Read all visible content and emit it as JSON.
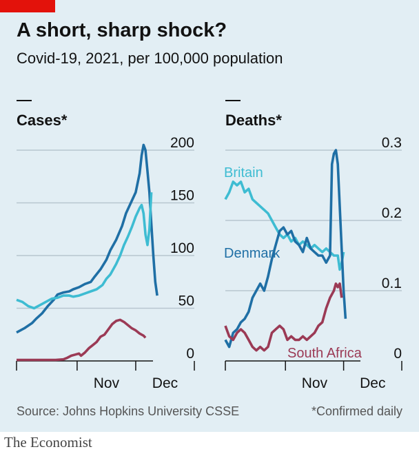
{
  "header": {
    "title": "A short, sharp shock?",
    "subtitle": "Covid-19, 2021, per 100,000 population"
  },
  "source": "Source: Johns Hopkins University CSSE",
  "footnote": "*Confirmed daily",
  "brand": "The Economist",
  "colors": {
    "background": "#e2eef4",
    "brand_red": "#e3120b",
    "denmark": "#1f6fa5",
    "britain": "#3ebcd2",
    "south_africa": "#9b3a55",
    "grid": "#b7c6cf"
  },
  "chart_data": [
    {
      "type": "line",
      "title": "Cases*",
      "ylim": [
        0,
        200
      ],
      "yticks": [
        "0",
        "50",
        "100",
        "150",
        "200"
      ],
      "xticks": [
        {
          "label": "Nov",
          "day": 31
        },
        {
          "label": "Dec",
          "day": 61
        }
      ],
      "xlim": [
        0,
        91
      ],
      "series": [
        {
          "name": "Denmark",
          "points": [
            [
              0,
              27
            ],
            [
              4,
              31
            ],
            [
              8,
              36
            ],
            [
              10,
              40
            ],
            [
              13,
              45
            ],
            [
              16,
              52
            ],
            [
              19,
              58
            ],
            [
              21,
              63
            ],
            [
              24,
              65
            ],
            [
              27,
              66
            ],
            [
              29,
              68
            ],
            [
              32,
              70
            ],
            [
              35,
              73
            ],
            [
              38,
              75
            ],
            [
              40,
              80
            ],
            [
              43,
              87
            ],
            [
              46,
              96
            ],
            [
              48,
              105
            ],
            [
              51,
              115
            ],
            [
              54,
              128
            ],
            [
              56,
              140
            ],
            [
              59,
              152
            ],
            [
              61,
              160
            ],
            [
              63,
              178
            ],
            [
              64,
              195
            ],
            [
              65,
              205
            ],
            [
              66,
              200
            ],
            [
              67,
              180
            ],
            [
              68,
              160
            ],
            [
              69,
              130
            ],
            [
              70,
              100
            ],
            [
              71,
              75
            ],
            [
              72,
              62
            ]
          ]
        },
        {
          "name": "Britain",
          "points": [
            [
              0,
              58
            ],
            [
              3,
              56
            ],
            [
              6,
              52
            ],
            [
              9,
              50
            ],
            [
              12,
              53
            ],
            [
              15,
              56
            ],
            [
              18,
              59
            ],
            [
              21,
              60
            ],
            [
              24,
              62
            ],
            [
              27,
              62
            ],
            [
              29,
              61
            ],
            [
              32,
              62
            ],
            [
              35,
              64
            ],
            [
              38,
              66
            ],
            [
              41,
              68
            ],
            [
              44,
              72
            ],
            [
              46,
              78
            ],
            [
              48,
              82
            ],
            [
              51,
              92
            ],
            [
              53,
              100
            ],
            [
              55,
              110
            ],
            [
              57,
              118
            ],
            [
              59,
              127
            ],
            [
              61,
              137
            ],
            [
              63,
              145
            ],
            [
              64,
              148
            ],
            [
              65,
              140
            ],
            [
              66,
              120
            ],
            [
              67,
              110
            ],
            [
              68,
              125
            ],
            [
              69,
              160
            ]
          ]
        },
        {
          "name": "South Africa",
          "points": [
            [
              0,
              1
            ],
            [
              10,
              1
            ],
            [
              20,
              1
            ],
            [
              24,
              1.5
            ],
            [
              26,
              3
            ],
            [
              28,
              5
            ],
            [
              30,
              6
            ],
            [
              32,
              7
            ],
            [
              33,
              5
            ],
            [
              35,
              8
            ],
            [
              37,
              12
            ],
            [
              39,
              15
            ],
            [
              41,
              18
            ],
            [
              43,
              23
            ],
            [
              45,
              25
            ],
            [
              47,
              30
            ],
            [
              49,
              35
            ],
            [
              51,
              38
            ],
            [
              53,
              39
            ],
            [
              55,
              37
            ],
            [
              57,
              34
            ],
            [
              59,
              31
            ],
            [
              61,
              29
            ],
            [
              63,
              26
            ],
            [
              65,
              24
            ],
            [
              66,
              22
            ]
          ]
        }
      ]
    },
    {
      "type": "line",
      "title": "Deaths*",
      "ylim": [
        0,
        0.3
      ],
      "yticks": [
        "0",
        "0.1",
        "0.2",
        "0.3"
      ],
      "xticks": [
        {
          "label": "Nov",
          "day": 31
        },
        {
          "label": "Dec",
          "day": 61
        }
      ],
      "xlim": [
        0,
        91
      ],
      "series": [
        {
          "name": "Britain",
          "points": [
            [
              0,
              0.23
            ],
            [
              2,
              0.24
            ],
            [
              4,
              0.255
            ],
            [
              6,
              0.25
            ],
            [
              8,
              0.255
            ],
            [
              10,
              0.24
            ],
            [
              12,
              0.245
            ],
            [
              14,
              0.23
            ],
            [
              16,
              0.225
            ],
            [
              18,
              0.22
            ],
            [
              20,
              0.215
            ],
            [
              22,
              0.21
            ],
            [
              24,
              0.2
            ],
            [
              26,
              0.19
            ],
            [
              28,
              0.18
            ],
            [
              30,
              0.175
            ],
            [
              32,
              0.18
            ],
            [
              34,
              0.17
            ],
            [
              36,
              0.175
            ],
            [
              38,
              0.165
            ],
            [
              40,
              0.17
            ],
            [
              42,
              0.165
            ],
            [
              44,
              0.16
            ],
            [
              46,
              0.165
            ],
            [
              48,
              0.16
            ],
            [
              50,
              0.155
            ],
            [
              52,
              0.16
            ],
            [
              54,
              0.155
            ],
            [
              56,
              0.15
            ],
            [
              58,
              0.15
            ],
            [
              59,
              0.13
            ],
            [
              60,
              0.14
            ],
            [
              61,
              0.155
            ]
          ]
        },
        {
          "name": "Denmark",
          "points": [
            [
              0,
              0.03
            ],
            [
              2,
              0.02
            ],
            [
              4,
              0.04
            ],
            [
              6,
              0.045
            ],
            [
              8,
              0.055
            ],
            [
              10,
              0.06
            ],
            [
              12,
              0.07
            ],
            [
              14,
              0.09
            ],
            [
              16,
              0.1
            ],
            [
              18,
              0.11
            ],
            [
              20,
              0.1
            ],
            [
              22,
              0.12
            ],
            [
              24,
              0.145
            ],
            [
              26,
              0.165
            ],
            [
              28,
              0.185
            ],
            [
              30,
              0.19
            ],
            [
              32,
              0.18
            ],
            [
              34,
              0.185
            ],
            [
              36,
              0.17
            ],
            [
              38,
              0.165
            ],
            [
              40,
              0.155
            ],
            [
              42,
              0.175
            ],
            [
              44,
              0.16
            ],
            [
              46,
              0.155
            ],
            [
              48,
              0.15
            ],
            [
              50,
              0.15
            ],
            [
              52,
              0.14
            ],
            [
              54,
              0.15
            ],
            [
              55,
              0.28
            ],
            [
              56,
              0.295
            ],
            [
              57,
              0.3
            ],
            [
              58,
              0.28
            ],
            [
              59,
              0.22
            ],
            [
              60,
              0.16
            ],
            [
              61,
              0.1
            ],
            [
              62,
              0.06
            ]
          ]
        },
        {
          "name": "South Africa",
          "points": [
            [
              0,
              0.05
            ],
            [
              2,
              0.035
            ],
            [
              4,
              0.03
            ],
            [
              6,
              0.04
            ],
            [
              8,
              0.045
            ],
            [
              10,
              0.04
            ],
            [
              12,
              0.03
            ],
            [
              14,
              0.02
            ],
            [
              16,
              0.015
            ],
            [
              18,
              0.02
            ],
            [
              20,
              0.015
            ],
            [
              22,
              0.02
            ],
            [
              24,
              0.04
            ],
            [
              26,
              0.045
            ],
            [
              28,
              0.05
            ],
            [
              30,
              0.045
            ],
            [
              32,
              0.03
            ],
            [
              34,
              0.035
            ],
            [
              36,
              0.03
            ],
            [
              38,
              0.03
            ],
            [
              40,
              0.035
            ],
            [
              42,
              0.03
            ],
            [
              44,
              0.035
            ],
            [
              46,
              0.04
            ],
            [
              48,
              0.05
            ],
            [
              50,
              0.055
            ],
            [
              52,
              0.075
            ],
            [
              54,
              0.09
            ],
            [
              56,
              0.1
            ],
            [
              57,
              0.11
            ],
            [
              58,
              0.105
            ],
            [
              59,
              0.11
            ],
            [
              60,
              0.09
            ]
          ]
        }
      ],
      "labels": [
        {
          "series": "Britain",
          "text": "Britain"
        },
        {
          "series": "Denmark",
          "text": "Denmark"
        },
        {
          "series": "South Africa",
          "text": "South Africa"
        }
      ]
    }
  ]
}
